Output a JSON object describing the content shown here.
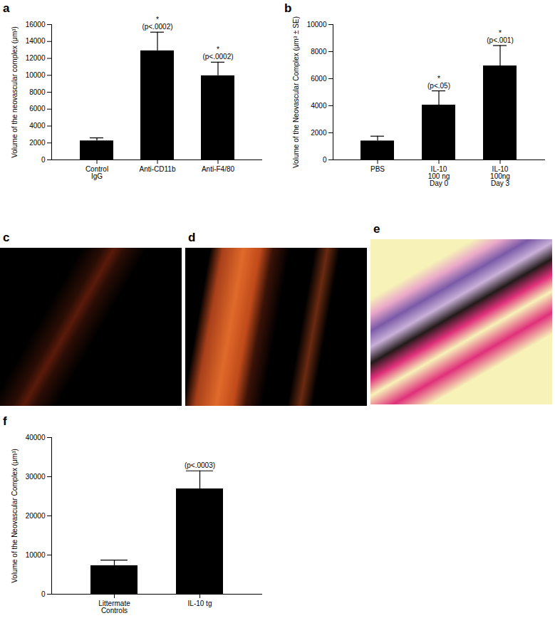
{
  "chart_data": [
    {
      "type": "bar",
      "title": "a",
      "y_label": "Volume of the neovascular complex (μm³)",
      "categories": [
        "Control\nIgG",
        "Anti-CD11b",
        "Anti-F4/80"
      ],
      "values": [
        2250,
        12900,
        9950
      ],
      "errors": [
        350,
        2200,
        1600
      ],
      "annotations": [
        [],
        [
          "*",
          "(p<.0002)"
        ],
        [
          "*",
          "(p<.0002)"
        ]
      ],
      "color": "#000000",
      "ylim": [
        0,
        16000
      ],
      "yticks": [
        0,
        2000,
        4000,
        6000,
        8000,
        10000,
        12000,
        14000,
        16000
      ],
      "grid": false
    },
    {
      "type": "bar",
      "title": "b",
      "y_label": "Volume of the Neovascular Complex (μm³ ± SE)",
      "categories": [
        "PBS",
        "IL-10\n100 ng\nDay 0",
        "IL-10\n100ng\nDay 3"
      ],
      "values": [
        1400,
        4050,
        6950
      ],
      "errors": [
        350,
        1050,
        1500
      ],
      "annotations": [
        [],
        [
          "*",
          "(p<.05)"
        ],
        [
          "*",
          "(p<.001)"
        ]
      ],
      "color": "#000000",
      "ylim": [
        0,
        10000
      ],
      "yticks": [
        0,
        2000,
        4000,
        6000,
        8000,
        10000
      ],
      "grid": false
    },
    {
      "type": "bar",
      "title": "f",
      "y_label": "Volume of the Neovascular Complex (μm³)",
      "categories": [
        "Littermate\nControls",
        "IL-10 tg"
      ],
      "values": [
        7300,
        26900
      ],
      "errors": [
        1400,
        4600
      ],
      "annotations": [
        [],
        [
          "(p<.0003)"
        ]
      ],
      "color": "#000000",
      "ylim": [
        0,
        40000
      ],
      "yticks": [
        0,
        10000,
        20000,
        30000,
        40000
      ],
      "grid": false
    }
  ],
  "images": [
    {
      "label": "c"
    },
    {
      "label": "d"
    },
    {
      "label": "e"
    }
  ]
}
